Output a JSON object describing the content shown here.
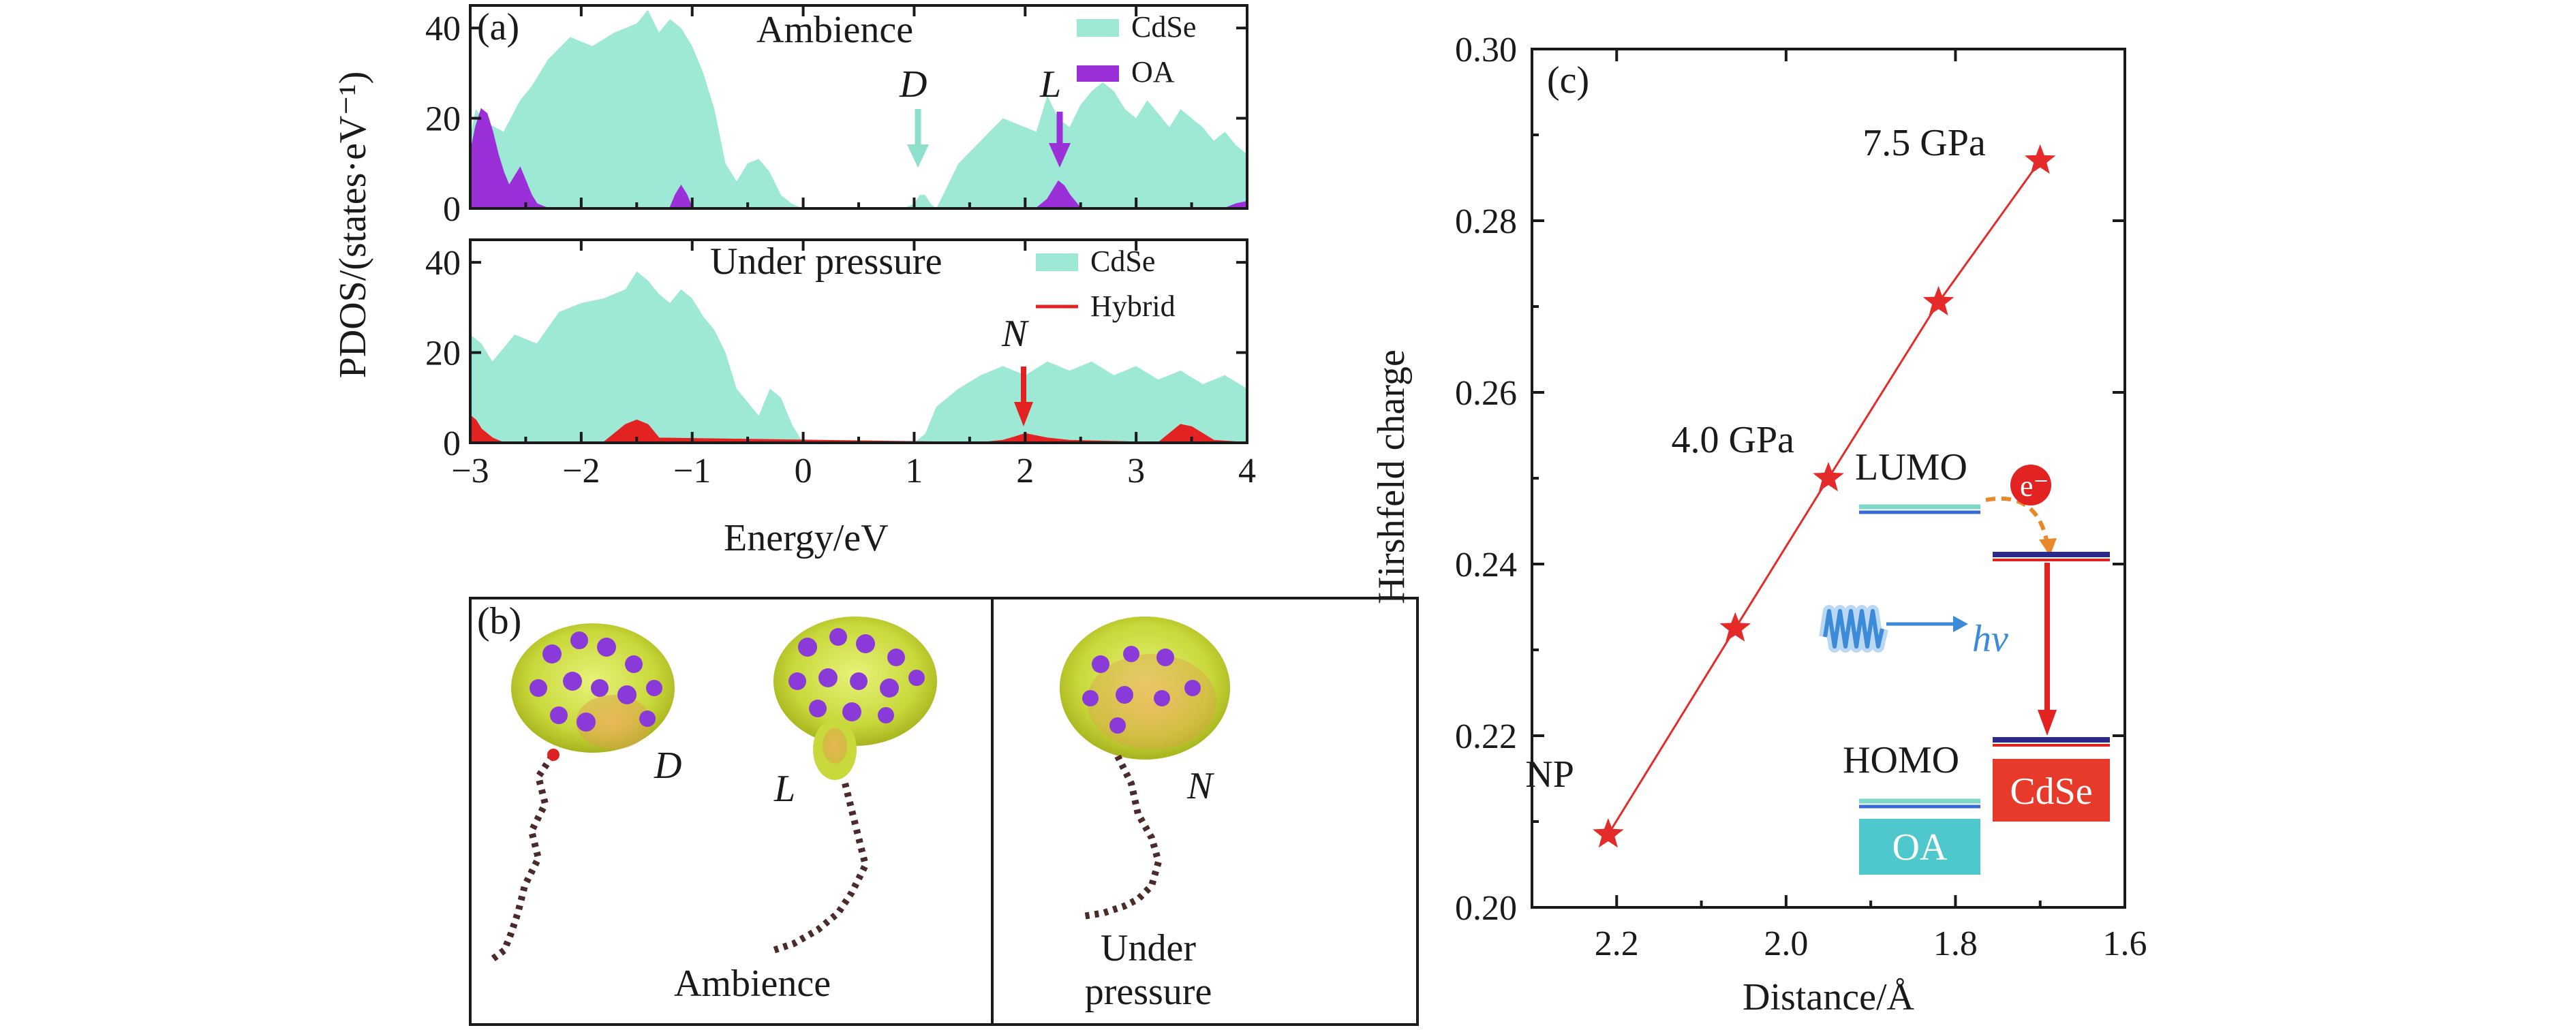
{
  "chart_data": [
    {
      "type": "area",
      "panel_label": "(a)",
      "title": "Ambience",
      "xlim": [
        -3,
        4
      ],
      "ylim": [
        0,
        45
      ],
      "x_ticks": [
        "−3",
        "−2",
        "−1",
        "0",
        "1",
        "2",
        "3",
        "4"
      ],
      "y_ticks": [
        "0",
        "20",
        "40"
      ],
      "ylabel": "PDOS/(states·eV⁻¹)",
      "legend": [
        "CdSe",
        "OA"
      ],
      "colors": {
        "CdSe": "#9ee8d6",
        "OA": "#9b30d9"
      },
      "series": [
        {
          "name": "CdSe",
          "x": [
            -3,
            -2.95,
            -2.85,
            -2.7,
            -2.55,
            -2.45,
            -2.3,
            -2.1,
            -1.9,
            -1.7,
            -1.5,
            -1.4,
            -1.3,
            -1.2,
            -1.1,
            -1,
            -0.9,
            -0.8,
            -0.7,
            -0.6,
            -0.5,
            -0.4,
            -0.3,
            -0.2,
            -0.1,
            0,
            0.6,
            0.9,
            1,
            1.05,
            1.1,
            1.15,
            1.2,
            1.4,
            1.6,
            1.8,
            2,
            2.1,
            2.2,
            2.3,
            2.4,
            2.5,
            2.6,
            2.7,
            2.8,
            2.9,
            3,
            3.1,
            3.2,
            3.3,
            3.4,
            3.5,
            3.6,
            3.7,
            3.8,
            3.9,
            4
          ],
          "values": [
            16,
            22,
            19,
            17,
            24,
            27,
            33,
            38,
            36,
            39,
            41,
            44,
            39,
            42,
            40,
            36,
            30,
            22,
            10,
            6,
            10,
            11,
            8,
            3,
            1,
            0,
            0,
            0,
            1,
            3,
            3,
            1,
            0,
            10,
            15,
            20,
            18,
            17,
            25,
            20,
            18,
            23,
            26,
            28,
            26,
            22,
            20,
            24,
            21,
            18,
            22,
            20,
            18,
            15,
            17,
            14,
            12
          ]
        },
        {
          "name": "OA",
          "x": [
            -3,
            -2.95,
            -2.9,
            -2.85,
            -2.8,
            -2.75,
            -2.7,
            -2.65,
            -2.6,
            -2.55,
            -2.5,
            -2.45,
            -2.4,
            -2.35,
            -2.3,
            -2.2,
            -1.2,
            -1.15,
            -1.1,
            -1.05,
            -1,
            2.1,
            2.2,
            2.25,
            2.3,
            2.35,
            2.4,
            2.5,
            3.8,
            3.9,
            4
          ],
          "values": [
            12,
            18,
            22,
            21,
            17,
            12,
            8,
            5,
            7,
            9,
            6,
            3,
            1,
            0.5,
            0,
            0,
            0,
            3,
            5,
            3,
            0,
            0,
            2,
            4,
            6,
            5,
            3,
            0,
            0,
            1,
            1.5
          ]
        }
      ],
      "annotations": [
        "D",
        "L"
      ]
    },
    {
      "type": "area",
      "title": "Under pressure",
      "xlim": [
        -3,
        4
      ],
      "ylim": [
        0,
        45
      ],
      "x_ticks": [
        "−3",
        "−2",
        "−1",
        "0",
        "1",
        "2",
        "3",
        "4"
      ],
      "y_ticks": [
        "0",
        "20",
        "40"
      ],
      "xlabel": "Energy/eV",
      "legend": [
        "CdSe",
        "Hybrid"
      ],
      "colors": {
        "CdSe": "#9ee8d6",
        "Hybrid": "#e32222"
      },
      "series": [
        {
          "name": "CdSe",
          "x": [
            -3,
            -2.9,
            -2.8,
            -2.6,
            -2.4,
            -2.2,
            -2,
            -1.8,
            -1.6,
            -1.5,
            -1.4,
            -1.3,
            -1.2,
            -1.1,
            -1,
            -0.9,
            -0.8,
            -0.7,
            -0.6,
            -0.5,
            -0.4,
            -0.3,
            -0.2,
            -0.1,
            0,
            1,
            1.1,
            1.2,
            1.4,
            1.6,
            1.8,
            2,
            2.2,
            2.4,
            2.6,
            2.8,
            3,
            3.2,
            3.4,
            3.6,
            3.8,
            4
          ],
          "values": [
            24,
            22,
            18,
            24,
            22,
            29,
            31,
            32,
            34,
            38,
            36,
            33,
            31,
            34,
            32,
            28,
            25,
            20,
            12,
            9,
            6,
            12,
            10,
            4,
            0,
            0,
            2,
            8,
            12,
            15,
            17,
            15,
            18,
            16,
            18,
            15,
            17,
            14,
            16,
            13,
            15,
            12
          ]
        },
        {
          "name": "Hybrid",
          "x": [
            -3,
            -2.95,
            -2.9,
            -2.8,
            -2.7,
            -1.8,
            -1.7,
            -1.6,
            -1.5,
            -1.4,
            -1.3,
            1.6,
            1.8,
            1.9,
            2,
            2.1,
            2.2,
            2.4,
            3.2,
            3.3,
            3.4,
            3.5,
            3.6,
            3.7,
            4
          ],
          "values": [
            6,
            5,
            3,
            1,
            0,
            0,
            2,
            4,
            5,
            4,
            1,
            0,
            0.5,
            1.2,
            2,
            1.5,
            1,
            0.5,
            0,
            2,
            4,
            3.5,
            2,
            0.5,
            0
          ]
        }
      ],
      "annotations": [
        "N"
      ]
    },
    {
      "type": "scatter",
      "panel_label": "(c)",
      "xlabel": "Distance/Å",
      "ylabel": "Hirshfeld charge",
      "xlim": [
        2.3,
        1.6
      ],
      "ylim": [
        0.2,
        0.3
      ],
      "x_ticks": [
        "2.2",
        "2.0",
        "1.8",
        "1.6"
      ],
      "y_ticks": [
        "0.20",
        "0.22",
        "0.24",
        "0.26",
        "0.28",
        "0.30"
      ],
      "color": "#e52a2a",
      "x": [
        2.21,
        2.06,
        1.95,
        1.82,
        1.7
      ],
      "y": [
        0.2085,
        0.2325,
        0.25,
        0.2705,
        0.287
      ],
      "point_labels": [
        "NP",
        "",
        "4.0 GPa",
        "",
        "7.5 GPa"
      ]
    }
  ],
  "panel_b": {
    "label": "(b)",
    "structures": [
      "D",
      "L",
      "N"
    ],
    "captions": {
      "ambience": "Ambience",
      "pressure_line1": "Under",
      "pressure_line2": "pressure"
    }
  },
  "inset": {
    "lumo": "LUMO",
    "homo": "HOMO",
    "electron": "e⁻",
    "photon": "hν",
    "cdse": "CdSe",
    "oa": "OA"
  }
}
